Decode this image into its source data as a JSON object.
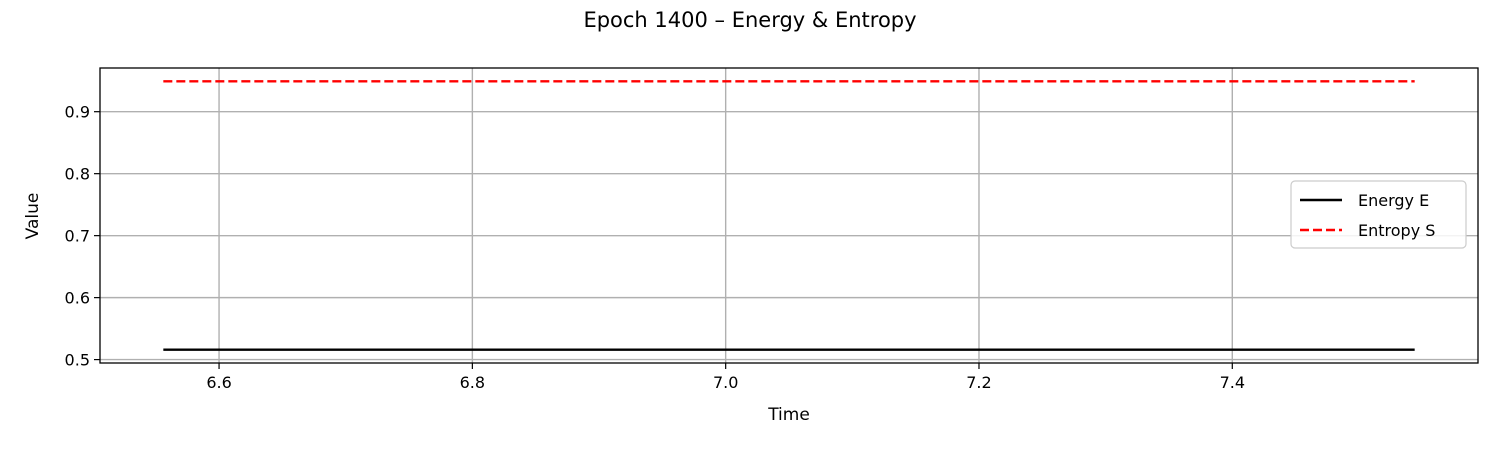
{
  "chart_data": {
    "type": "line",
    "title": "Epoch 1400 – Energy & Entropy",
    "xlabel": "Time",
    "ylabel": "Value",
    "xlim": [
      6.506,
      7.594
    ],
    "ylim": [
      0.4945,
      0.9705
    ],
    "xticks": [
      6.6,
      6.8,
      7.0,
      7.2,
      7.4
    ],
    "xtick_labels": [
      "6.6",
      "6.8",
      "7.0",
      "7.2",
      "7.4"
    ],
    "yticks": [
      0.5,
      0.6,
      0.7,
      0.8,
      0.9
    ],
    "ytick_labels": [
      "0.5",
      "0.6",
      "0.7",
      "0.8",
      "0.9"
    ],
    "grid": true,
    "legend_position": "center-right",
    "series": [
      {
        "name": "Energy E",
        "color": "#000000",
        "style": "solid",
        "x": [
          6.556,
          7.544
        ],
        "y": [
          0.516,
          0.516
        ]
      },
      {
        "name": "Entropy S",
        "color": "#ff0000",
        "style": "dashed",
        "x": [
          6.556,
          7.544
        ],
        "y": [
          0.949,
          0.949
        ]
      }
    ]
  }
}
